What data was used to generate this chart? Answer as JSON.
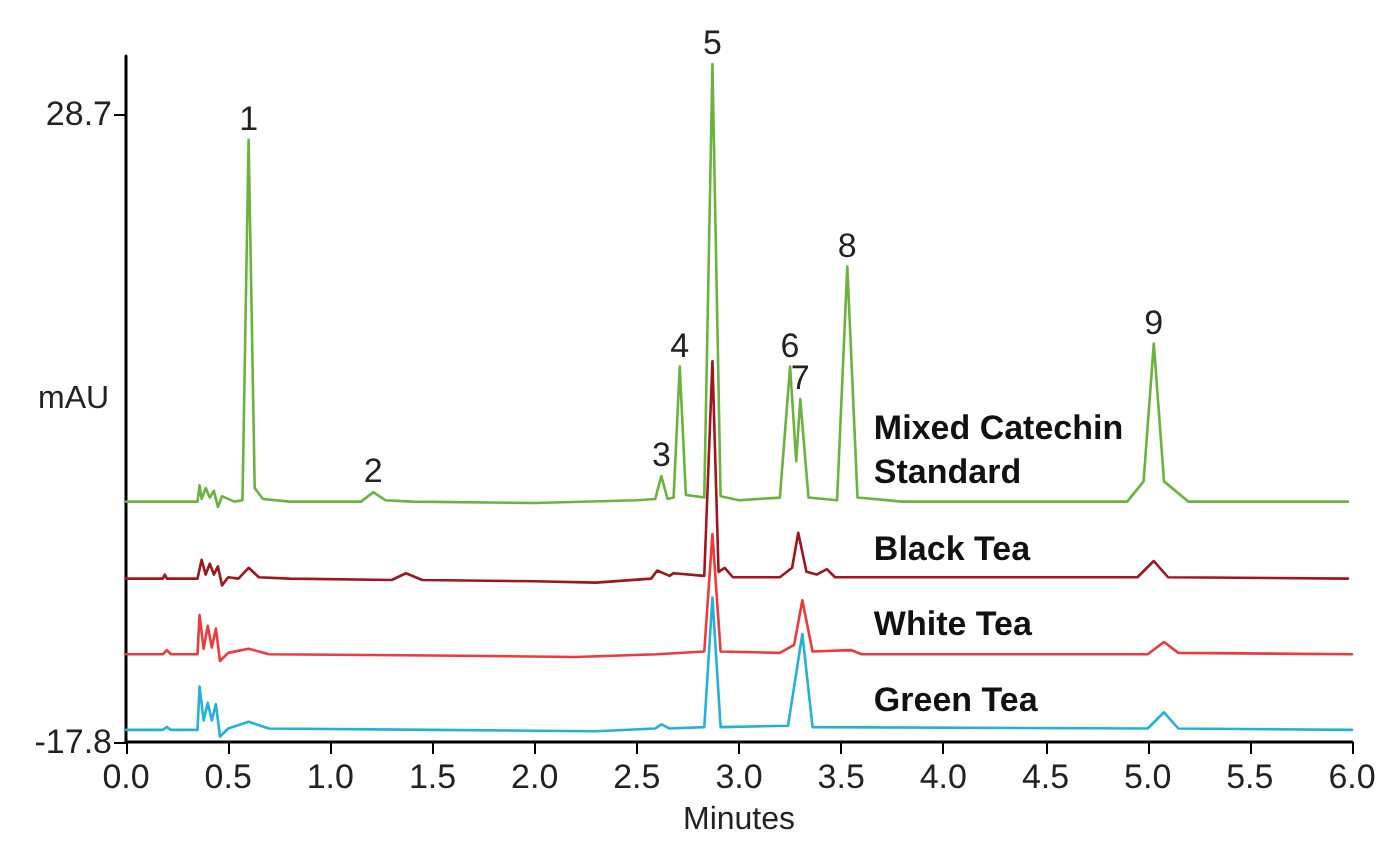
{
  "chart_data": {
    "type": "line",
    "xlabel": "Minutes",
    "ylabel": "mAU",
    "xlim": [
      0,
      6
    ],
    "ylim": [
      -17.8,
      33
    ],
    "xticks": [
      {
        "value": 0,
        "label": "0.0"
      },
      0.5,
      {
        "value": 1,
        "label": "1.0"
      },
      1.5,
      {
        "value": 2,
        "label": "2.0"
      },
      2.5,
      {
        "value": 3,
        "label": "3.0"
      },
      3.5,
      {
        "value": 4,
        "label": "4.0"
      },
      4.5,
      {
        "value": 5,
        "label": "5.0"
      },
      5.5,
      {
        "value": 6,
        "label": "6.0"
      }
    ],
    "yticks": [
      -17.8,
      28.7
    ],
    "grid": false,
    "marker": "none",
    "line_style": "solid",
    "series": [
      {
        "name": "Mixed Catechin Standard",
        "color": "#6ab43e",
        "x": [
          0,
          0.35,
          0.36,
          0.37,
          0.39,
          0.41,
          0.43,
          0.45,
          0.47,
          0.5,
          0.53,
          0.57,
          0.6,
          0.63,
          0.67,
          0.8,
          1.15,
          1.21,
          1.27,
          1.4,
          2.0,
          2.5,
          2.59,
          2.62,
          2.65,
          2.68,
          2.71,
          2.74,
          2.83,
          2.87,
          2.91,
          3.0,
          3.2,
          3.25,
          3.28,
          3.3,
          3.34,
          3.48,
          3.53,
          3.58,
          3.8,
          4.9,
          4.98,
          5.03,
          5.08,
          5.2,
          5.98
        ],
        "values": [
          0,
          0,
          1.2,
          0.2,
          1,
          0.3,
          0.8,
          -0.4,
          0.4,
          0.2,
          0,
          0.1,
          26.8,
          1,
          0.2,
          0,
          0,
          0.7,
          0.1,
          0,
          -0.1,
          0.1,
          0.2,
          1.9,
          0.2,
          0.3,
          10,
          0.5,
          0.3,
          32.4,
          0.4,
          0.1,
          0.3,
          10,
          3.0,
          7.6,
          0.3,
          0.1,
          17.4,
          0.3,
          0,
          0,
          1.5,
          11.7,
          1.5,
          0,
          0
        ]
      },
      {
        "name": "Black Tea",
        "color": "#a0161c",
        "x": [
          0,
          0.18,
          0.19,
          0.2,
          0.35,
          0.37,
          0.39,
          0.41,
          0.43,
          0.45,
          0.47,
          0.5,
          0.55,
          0.6,
          0.65,
          0.8,
          1.3,
          1.37,
          1.45,
          2.0,
          2.3,
          2.57,
          2.6,
          2.66,
          2.68,
          2.83,
          2.87,
          2.9,
          2.93,
          2.97,
          3.2,
          3.26,
          3.29,
          3.33,
          3.38,
          3.43,
          3.47,
          4.95,
          5.03,
          5.1,
          5.98
        ],
        "values": [
          -5.7,
          -5.7,
          -5.4,
          -5.7,
          -5.7,
          -4.3,
          -5.4,
          -4.6,
          -5.4,
          -4.8,
          -6.2,
          -5.6,
          -5.7,
          -4.9,
          -5.6,
          -5.7,
          -5.8,
          -5.3,
          -5.8,
          -5.9,
          -6.0,
          -5.7,
          -5.1,
          -5.5,
          -5.3,
          -5.5,
          10.4,
          -5.2,
          -4.9,
          -5.6,
          -5.6,
          -4.9,
          -2.3,
          -5.2,
          -5.4,
          -5.0,
          -5.6,
          -5.6,
          -4.4,
          -5.6,
          -5.7
        ]
      },
      {
        "name": "White Tea",
        "color": "#ee3a3a",
        "x": [
          0,
          0.18,
          0.2,
          0.22,
          0.35,
          0.36,
          0.38,
          0.4,
          0.42,
          0.44,
          0.46,
          0.5,
          0.6,
          0.7,
          1.5,
          2.2,
          2.6,
          2.83,
          2.87,
          2.91,
          3.2,
          3.27,
          3.31,
          3.36,
          3.55,
          3.6,
          5.0,
          5.08,
          5.15,
          6.0
        ],
        "values": [
          -11.3,
          -11.3,
          -11.0,
          -11.3,
          -11.3,
          -8.4,
          -10.9,
          -9.2,
          -10.8,
          -9.4,
          -11.8,
          -11.2,
          -10.9,
          -11.3,
          -11.4,
          -11.5,
          -11.3,
          -11.1,
          -2.4,
          -11.1,
          -11.2,
          -10.6,
          -7.3,
          -11.1,
          -11.0,
          -11.3,
          -11.3,
          -10.4,
          -11.2,
          -11.3
        ]
      },
      {
        "name": "Green Tea",
        "color": "#22b2d8",
        "x": [
          0,
          0.18,
          0.2,
          0.22,
          0.35,
          0.36,
          0.38,
          0.4,
          0.42,
          0.44,
          0.46,
          0.5,
          0.6,
          0.7,
          1.5,
          2.3,
          2.59,
          2.62,
          2.66,
          2.83,
          2.87,
          2.91,
          3.24,
          3.31,
          3.36,
          5.0,
          5.08,
          5.15,
          6.0
        ],
        "values": [
          -16.9,
          -16.9,
          -16.7,
          -16.9,
          -16.9,
          -13.7,
          -16.2,
          -14.9,
          -16.2,
          -15.0,
          -17.4,
          -16.8,
          -16.3,
          -16.8,
          -16.9,
          -17.0,
          -16.8,
          -16.5,
          -16.8,
          -16.7,
          -7.1,
          -16.7,
          -16.6,
          -9.8,
          -16.7,
          -16.8,
          -15.6,
          -16.8,
          -16.9
        ]
      }
    ],
    "annotations": [
      {
        "text": "1",
        "x": 0.6,
        "y": 26.8
      },
      {
        "text": "2",
        "x": 1.21,
        "y": 0.7
      },
      {
        "text": "3",
        "x": 2.62,
        "y": 1.9
      },
      {
        "text": "4",
        "x": 2.71,
        "y": 10
      },
      {
        "text": "5",
        "x": 2.87,
        "y": 32.4
      },
      {
        "text": "6",
        "x": 3.25,
        "y": 10
      },
      {
        "text": "7",
        "x": 3.3,
        "y": 7.6
      },
      {
        "text": "8",
        "x": 3.53,
        "y": 17.4
      },
      {
        "text": "9",
        "x": 5.03,
        "y": 11.7
      }
    ]
  }
}
